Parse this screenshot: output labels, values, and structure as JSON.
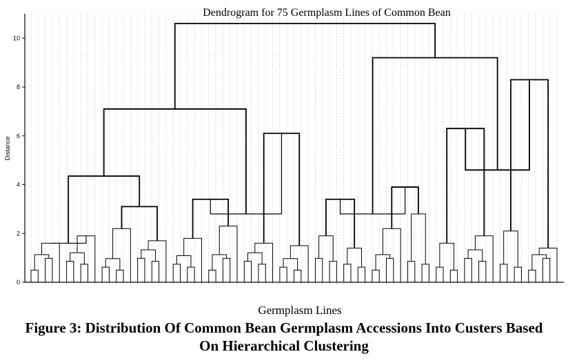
{
  "chart_data": {
    "type": "dendrogram",
    "title": "Dendrogram for 75 Germplasm Lines of Common Bean",
    "xlabel": "Germplasm Lines",
    "ylabel": "Distance",
    "ylim": [
      0,
      11
    ],
    "yticks": [
      "0",
      "2",
      "4",
      "6",
      "8",
      "10"
    ],
    "n_leaves": 75,
    "grid": "vertical dotted lines at each leaf",
    "merges": [
      {
        "left": 0,
        "right": 1,
        "height": 1.6
      },
      {
        "left": 2,
        "right": 3,
        "height": 3.1
      },
      {
        "left": 4,
        "right": 5,
        "height": 3.4
      },
      {
        "left": 6,
        "right": 7,
        "height": 6.1
      },
      {
        "left": 8,
        "right": 9,
        "height": 3.4
      },
      {
        "left": 10,
        "right": 11,
        "height": 3.9
      },
      {
        "left": 12,
        "right": 13,
        "height": 6.3
      },
      {
        "left": 14,
        "right": 15,
        "height": 8.3
      },
      {
        "left": 16,
        "right": 17,
        "height": 4.35
      },
      {
        "left": 18,
        "right": 19,
        "height": 2.8
      },
      {
        "left": 20,
        "right": 21,
        "height": 2.8
      },
      {
        "left": 22,
        "right": 23,
        "height": 4.6
      },
      {
        "left": 24,
        "right": 25,
        "height": 7.1
      },
      {
        "left": 26,
        "right": 27,
        "height": 9.2
      },
      {
        "left": 28,
        "right": 29,
        "height": 10.6
      }
    ]
  },
  "caption": {
    "line1": "Figure 3: Distribution Of Common Bean Germplasm Accessions Into Custers Based",
    "line2": "On Hierarchical Clustering"
  }
}
